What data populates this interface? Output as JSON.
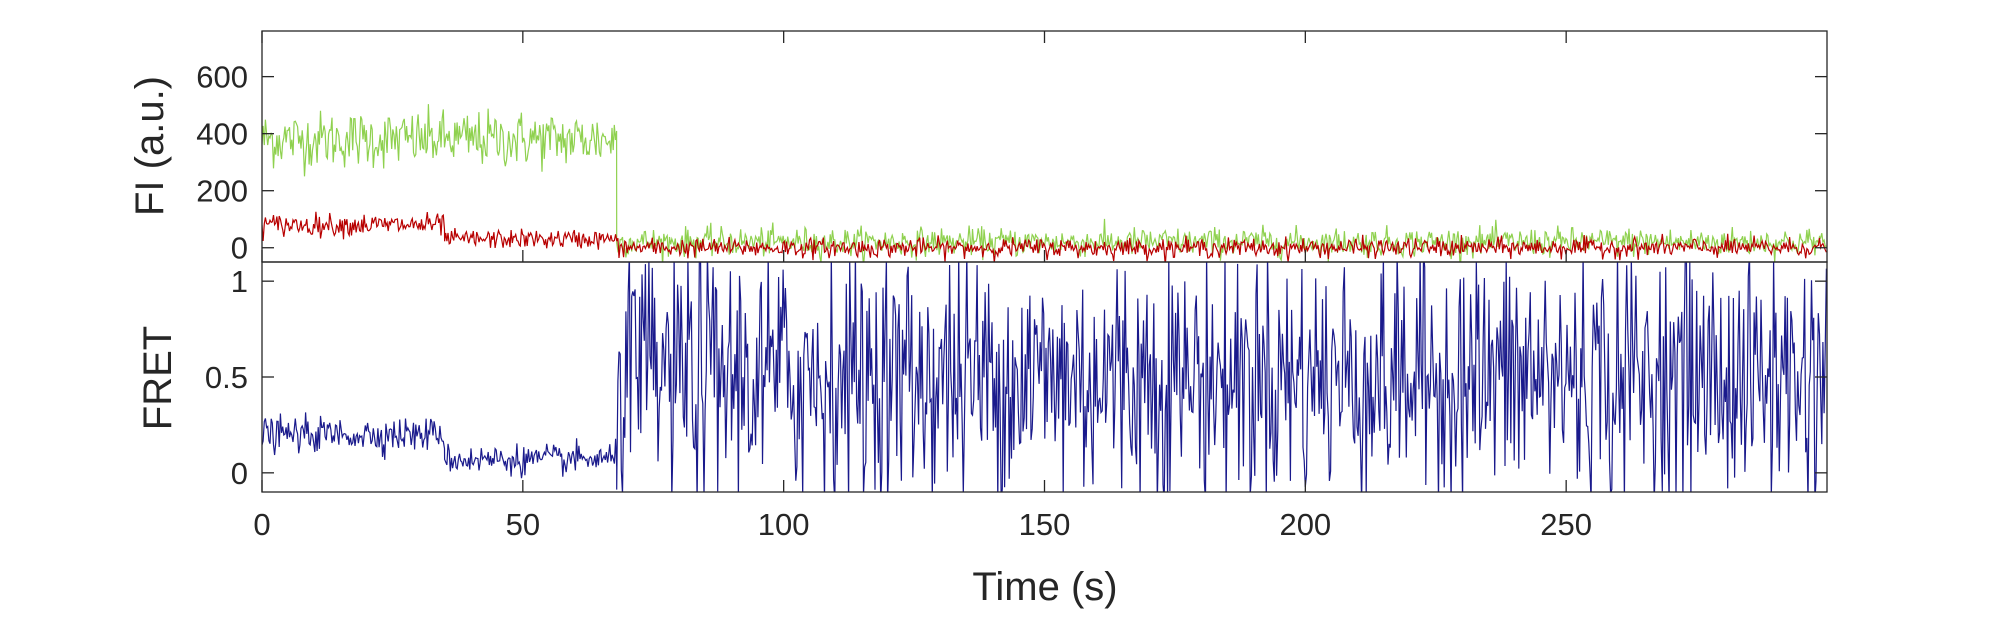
{
  "chart_data": [
    {
      "type": "line",
      "ylabel": "FI (a.u.)",
      "xlabel": "",
      "xlim": [
        0,
        300
      ],
      "ylim": [
        -50,
        760
      ],
      "yticks": [
        0,
        200,
        400,
        600
      ],
      "grid": false,
      "series": [
        {
          "color": "#8fd14f",
          "segments": [
            {
              "x_start": 0,
              "x_end": 68,
              "mean": 380,
              "noise": 90
            },
            {
              "x_start": 68,
              "x_end": 300,
              "mean": 20,
              "noise": 45
            }
          ]
        },
        {
          "color": "#b80000",
          "segments": [
            {
              "x_start": 0,
              "x_end": 35,
              "mean": 80,
              "noise": 35
            },
            {
              "x_start": 35,
              "x_end": 68,
              "mean": 30,
              "noise": 30
            },
            {
              "x_start": 68,
              "x_end": 300,
              "mean": 0,
              "noise": 30
            }
          ]
        }
      ]
    },
    {
      "type": "line",
      "ylabel": "FRET",
      "xlabel": "Time (s)",
      "xlim": [
        0,
        300
      ],
      "ylim": [
        -0.1,
        1.1
      ],
      "yticks": [
        0,
        0.5,
        1
      ],
      "xticks": [
        0,
        50,
        100,
        150,
        200,
        250
      ],
      "grid": false,
      "series": [
        {
          "color": "#1a1a8c",
          "segments": [
            {
              "x_start": 0,
              "x_end": 35,
              "mean": 0.2,
              "noise": 0.08
            },
            {
              "x_start": 35,
              "x_end": 68,
              "mean": 0.07,
              "noise": 0.07
            },
            {
              "x_start": 68,
              "x_end": 300,
              "mean": 0.5,
              "noise": 0.6
            }
          ]
        }
      ]
    }
  ]
}
